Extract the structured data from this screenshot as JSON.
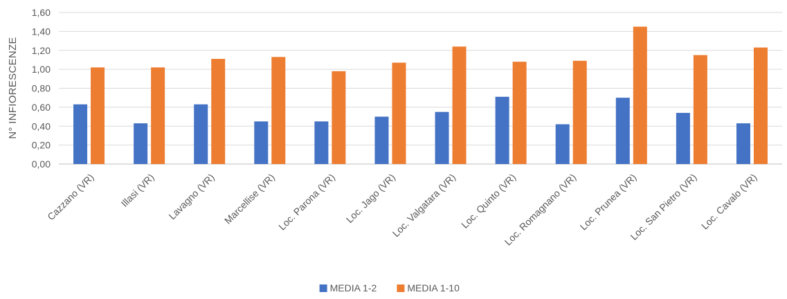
{
  "chart_data": {
    "type": "bar",
    "title": "",
    "xlabel": "",
    "ylabel": "N° INFIORESCENZE",
    "ylim": [
      0,
      1.6
    ],
    "yticks": [
      "0,00",
      "0,20",
      "0,40",
      "0,60",
      "0,80",
      "1,00",
      "1,20",
      "1,40",
      "1,60"
    ],
    "grid": true,
    "legend_position": "bottom",
    "categories": [
      "Cazzano (VR)",
      "Illasi (VR)",
      "Lavagno (VR)",
      "Marcellise (VR)",
      "Loc. Parona (VR)",
      "Loc. Jago (VR)",
      "Loc. Valgatara (VR)",
      "Loc. Quinto (VR)",
      "Loc. Romagnano (VR)",
      "Loc. Prunea (VR)",
      "Loc. San Pietro (VR)",
      "Loc. Cavalo (VR)"
    ],
    "series": [
      {
        "name": "MEDIA 1-2",
        "color": "#4472c4",
        "values": [
          0.63,
          0.43,
          0.63,
          0.45,
          0.45,
          0.5,
          0.55,
          0.71,
          0.42,
          0.7,
          0.54,
          0.43
        ]
      },
      {
        "name": "MEDIA 1-10",
        "color": "#ed7d31",
        "values": [
          1.02,
          1.02,
          1.11,
          1.13,
          0.98,
          1.07,
          1.24,
          1.08,
          1.09,
          1.45,
          1.15,
          1.23
        ]
      }
    ]
  }
}
